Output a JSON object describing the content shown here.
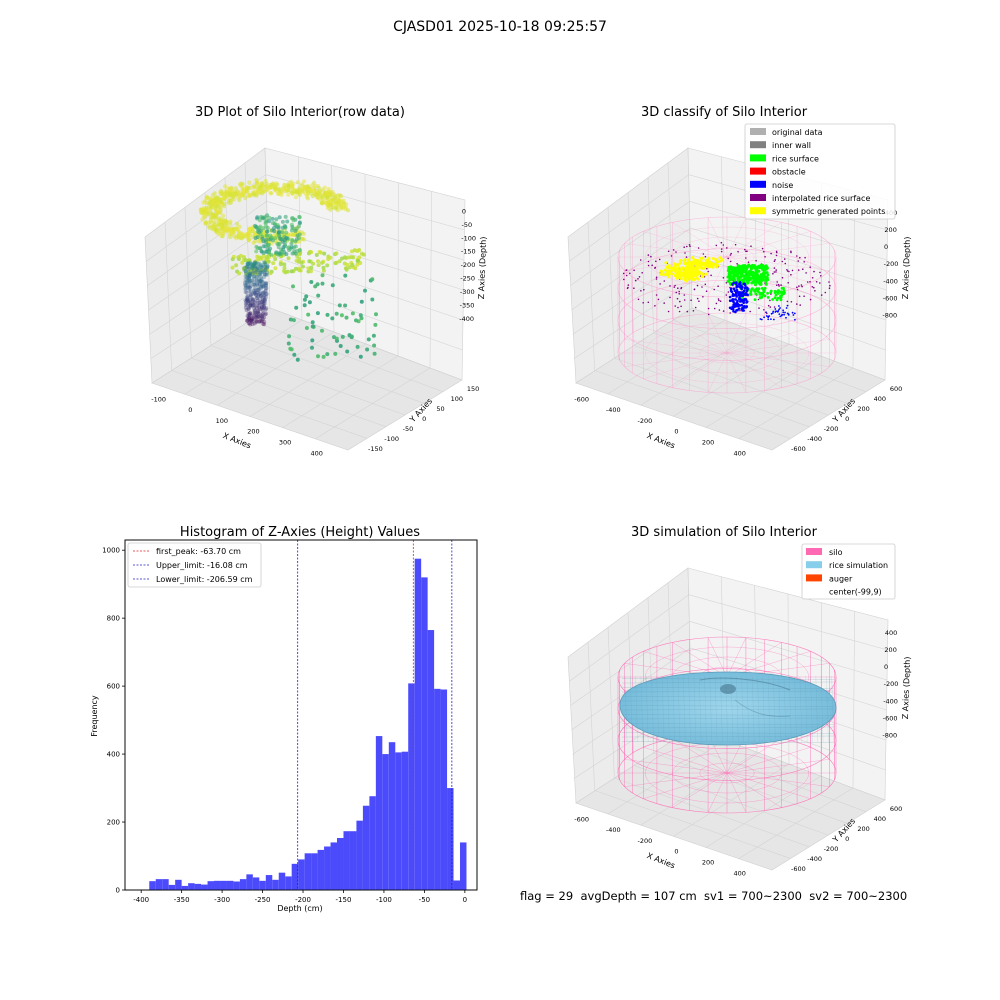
{
  "figure": {
    "suptitle": "CJASD01 2025-10-18 09:25:57",
    "footer": "flag = 29  avgDepth = 107 cm  sv1 = 700~2300  sv2 = 700~2300"
  },
  "colors": {
    "hist_bar": "#4b4bfb",
    "first_peak": "#e02020",
    "limits": "#2020c0",
    "silo": "#ff69b4",
    "rice_simulation": "#87ceeb",
    "auger": "#ff4500",
    "original_data": "#b0b0b0",
    "inner_wall": "#808080",
    "rice_surface": "#00ff00",
    "obstacle": "#ff0000",
    "noise": "#0000ff",
    "interpolated": "#800080",
    "symmetric": "#ffff00"
  },
  "panels": {
    "raw": {
      "title": "3D Plot of Silo Interior(row data)",
      "xlabel": "X Axies",
      "ylabel": "Y Axies",
      "zlabel": "Z Axies (Depth)",
      "xticks": [
        "-100",
        "0",
        "100",
        "200",
        "300",
        "400"
      ],
      "yticks": [
        "150",
        "100",
        "50",
        "0",
        "-50",
        "-100",
        "-150"
      ],
      "zticks": [
        "0",
        "-50",
        "-100",
        "-150",
        "-200",
        "-250",
        "-300",
        "-350",
        "-400"
      ]
    },
    "classify": {
      "title": "3D classify of Silo Interior",
      "xlabel": "X Axies",
      "ylabel": "Y Axies",
      "zlabel": "Z Axies (Depth)",
      "xticks": [
        "-600",
        "-400",
        "-200",
        "0",
        "200",
        "400"
      ],
      "yticks": [
        "600",
        "400",
        "200",
        "0",
        "-200",
        "-400",
        "-600"
      ],
      "zticks": [
        "400",
        "200",
        "0",
        "-200",
        "-400",
        "-600",
        "-800"
      ],
      "legend": [
        {
          "label": "original data",
          "color": "#b0b0b0"
        },
        {
          "label": "inner wall",
          "color": "#808080"
        },
        {
          "label": "rice surface",
          "color": "#00ff00"
        },
        {
          "label": "obstacle",
          "color": "#ff0000"
        },
        {
          "label": "noise",
          "color": "#0000ff"
        },
        {
          "label": "interpolated rice surface",
          "color": "#800080"
        },
        {
          "label": "symmetric generated points",
          "color": "#ffff00"
        }
      ]
    },
    "simulation": {
      "title": "3D simulation of Silo Interior",
      "xlabel": "X Axies",
      "ylabel": "Y Axies",
      "zlabel": "Z Axies (Depth)",
      "xticks": [
        "-600",
        "-400",
        "-200",
        "0",
        "200",
        "400"
      ],
      "yticks": [
        "600",
        "400",
        "200",
        "0",
        "-200",
        "-400",
        "-600"
      ],
      "zticks": [
        "400",
        "200",
        "0",
        "-200",
        "-400",
        "-600",
        "-800"
      ],
      "legend": [
        {
          "label": "silo",
          "color": "#ff69b4"
        },
        {
          "label": "rice simulation",
          "color": "#87ceeb"
        },
        {
          "label": "auger",
          "color": "#ff4500"
        },
        {
          "label": "center(-99,9)",
          "color": ""
        }
      ]
    }
  },
  "chart_data": {
    "type": "bar",
    "title": "Histogram of Z-Axies (Height) Values",
    "xlabel": "Depth (cm)",
    "ylabel": "Frequency",
    "xlim": [
      -420,
      15
    ],
    "ylim": [
      0,
      1030
    ],
    "xticks": [
      -400,
      -350,
      -300,
      -250,
      -200,
      -150,
      -100,
      -50,
      0
    ],
    "yticks": [
      0,
      200,
      400,
      600,
      800,
      1000
    ],
    "bin_width": 8,
    "bin_start": -398,
    "values": [
      0,
      26,
      32,
      32,
      15,
      30,
      12,
      20,
      18,
      16,
      26,
      27,
      27,
      27,
      25,
      32,
      46,
      37,
      27,
      44,
      30,
      51,
      40,
      77,
      90,
      108,
      108,
      118,
      128,
      140,
      153,
      173,
      173,
      204,
      248,
      276,
      453,
      400,
      435,
      405,
      407,
      608,
      975,
      920,
      765,
      592,
      590,
      300,
      28,
      140
    ],
    "vlines": [
      {
        "label": "first_peak: -63.70 cm",
        "x": -63.7,
        "color": "#e02020"
      },
      {
        "label": "Upper_limit: -16.08 cm",
        "x": -16.08,
        "color": "#2020c0"
      },
      {
        "label": "Lower_limit: -206.59 cm",
        "x": -206.59,
        "color": "#2020c0"
      }
    ],
    "legend_position": "upper-left"
  }
}
